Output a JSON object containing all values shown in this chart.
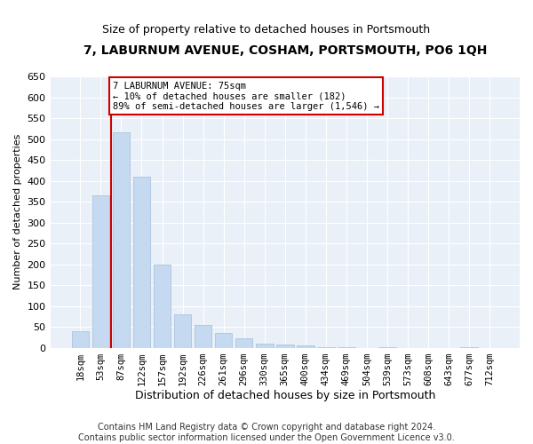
{
  "title": "7, LABURNUM AVENUE, COSHAM, PORTSMOUTH, PO6 1QH",
  "subtitle": "Size of property relative to detached houses in Portsmouth",
  "xlabel": "Distribution of detached houses by size in Portsmouth",
  "ylabel": "Number of detached properties",
  "categories": [
    "18sqm",
    "53sqm",
    "87sqm",
    "122sqm",
    "157sqm",
    "192sqm",
    "226sqm",
    "261sqm",
    "296sqm",
    "330sqm",
    "365sqm",
    "400sqm",
    "434sqm",
    "469sqm",
    "504sqm",
    "539sqm",
    "573sqm",
    "608sqm",
    "643sqm",
    "677sqm",
    "712sqm"
  ],
  "values": [
    40,
    365,
    515,
    410,
    200,
    80,
    55,
    35,
    22,
    10,
    7,
    5,
    1,
    1,
    0,
    1,
    0,
    0,
    0,
    1,
    0
  ],
  "bar_color": "#c5d9f0",
  "bar_edge_color": "#aac4e0",
  "vline_color": "#cc0000",
  "annotation_text": "7 LABURNUM AVENUE: 75sqm\n← 10% of detached houses are smaller (182)\n89% of semi-detached houses are larger (1,546) →",
  "annotation_box_color": "#ffffff",
  "annotation_box_edge": "#cc0000",
  "ylim": [
    0,
    650
  ],
  "yticks": [
    0,
    50,
    100,
    150,
    200,
    250,
    300,
    350,
    400,
    450,
    500,
    550,
    600,
    650
  ],
  "background_color": "#eaf0f8",
  "title_fontsize": 10,
  "subtitle_fontsize": 9,
  "ylabel_fontsize": 8,
  "xlabel_fontsize": 9,
  "tick_fontsize": 7.5,
  "ytick_fontsize": 8,
  "footnote": "Contains HM Land Registry data © Crown copyright and database right 2024.\nContains public sector information licensed under the Open Government Licence v3.0.",
  "footnote_fontsize": 7
}
